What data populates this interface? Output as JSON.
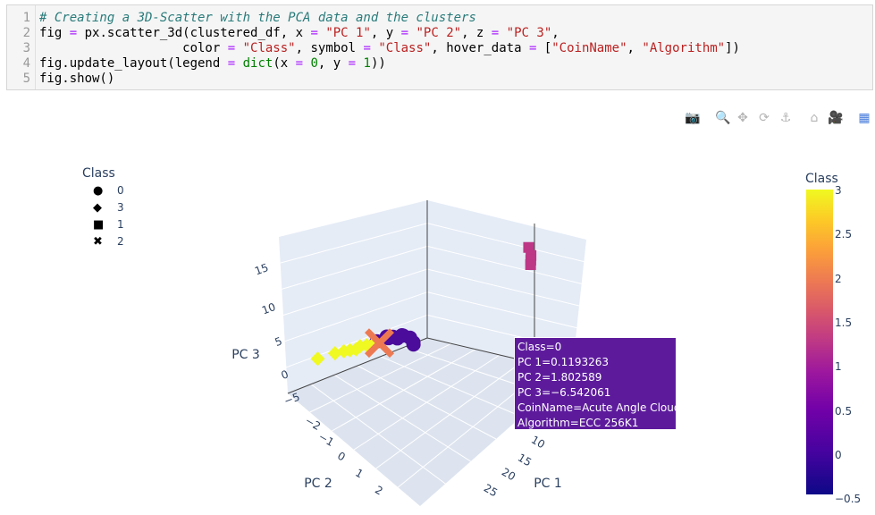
{
  "code": {
    "lines": [
      {
        "n": "1",
        "segments": [
          {
            "t": "# Creating a 3D-Scatter with the PCA data and the clusters",
            "c": "cm"
          }
        ]
      },
      {
        "n": "2",
        "segments": [
          {
            "t": "fig ",
            "c": ""
          },
          {
            "t": "=",
            "c": "op"
          },
          {
            "t": " px.scatter_3d(clustered_df, x ",
            "c": ""
          },
          {
            "t": "=",
            "c": "op"
          },
          {
            "t": " ",
            "c": ""
          },
          {
            "t": "\"PC 1\"",
            "c": "st"
          },
          {
            "t": ", y ",
            "c": ""
          },
          {
            "t": "=",
            "c": "op"
          },
          {
            "t": " ",
            "c": ""
          },
          {
            "t": "\"PC 2\"",
            "c": "st"
          },
          {
            "t": ", z ",
            "c": ""
          },
          {
            "t": "=",
            "c": "op"
          },
          {
            "t": " ",
            "c": ""
          },
          {
            "t": "\"PC 3\"",
            "c": "st"
          },
          {
            "t": ",",
            "c": ""
          }
        ]
      },
      {
        "n": "3",
        "segments": [
          {
            "t": "                   color ",
            "c": ""
          },
          {
            "t": "=",
            "c": "op"
          },
          {
            "t": " ",
            "c": ""
          },
          {
            "t": "\"Class\"",
            "c": "st"
          },
          {
            "t": ", symbol ",
            "c": ""
          },
          {
            "t": "=",
            "c": "op"
          },
          {
            "t": " ",
            "c": ""
          },
          {
            "t": "\"Class\"",
            "c": "st"
          },
          {
            "t": ", hover_data ",
            "c": ""
          },
          {
            "t": "=",
            "c": "op"
          },
          {
            "t": " [",
            "c": ""
          },
          {
            "t": "\"CoinName\"",
            "c": "st"
          },
          {
            "t": ", ",
            "c": ""
          },
          {
            "t": "\"Algorithm\"",
            "c": "st"
          },
          {
            "t": "])",
            "c": ""
          }
        ]
      },
      {
        "n": "4",
        "segments": [
          {
            "t": "fig.update_layout(legend ",
            "c": ""
          },
          {
            "t": "=",
            "c": "op"
          },
          {
            "t": " ",
            "c": ""
          },
          {
            "t": "dict",
            "c": "nm"
          },
          {
            "t": "(x ",
            "c": ""
          },
          {
            "t": "=",
            "c": "op"
          },
          {
            "t": " ",
            "c": ""
          },
          {
            "t": "0",
            "c": "nm"
          },
          {
            "t": ", y ",
            "c": ""
          },
          {
            "t": "=",
            "c": "op"
          },
          {
            "t": " ",
            "c": ""
          },
          {
            "t": "1",
            "c": "nm"
          },
          {
            "t": "))",
            "c": ""
          }
        ]
      },
      {
        "n": "5",
        "segments": [
          {
            "t": "fig.show()",
            "c": ""
          }
        ]
      }
    ]
  },
  "modebar": [
    {
      "name": "camera-icon",
      "glyph": "📷"
    },
    {
      "name": "zoom-icon",
      "glyph": "🔍"
    },
    {
      "name": "pan-icon",
      "glyph": "✥"
    },
    {
      "name": "orbit-icon",
      "glyph": "⟳"
    },
    {
      "name": "turntable-icon",
      "glyph": "⚓"
    },
    {
      "name": "home-icon",
      "glyph": "⌂"
    },
    {
      "name": "reset-camera-icon",
      "glyph": "🎥"
    },
    {
      "name": "plotly-logo-icon",
      "glyph": "▦"
    }
  ],
  "legend": {
    "title": "Class",
    "items": [
      {
        "symbol": "●",
        "label": "0"
      },
      {
        "symbol": "◆",
        "label": "3"
      },
      {
        "symbol": "■",
        "label": "1"
      },
      {
        "symbol": "✖",
        "label": "2"
      }
    ]
  },
  "colorbar": {
    "title": "Class",
    "ticks": [
      "3",
      "2.5",
      "2",
      "1.5",
      "1",
      "0.5",
      "0",
      "−0.5"
    ]
  },
  "hover": {
    "lines": [
      "Class=0",
      "PC 1=0.1193263",
      "PC 2=1.802589",
      "PC 3=−6.542061",
      "CoinName=Acute Angle Cloud",
      "Algorithm=ECC 256K1"
    ]
  },
  "chart_data": {
    "type": "scatter",
    "axes": {
      "x": {
        "title": "PC 1",
        "ticks": [
          "10",
          "15",
          "20",
          "25"
        ]
      },
      "y": {
        "title": "PC 2",
        "ticks": [
          "−2",
          "−1",
          "0",
          "1",
          "2"
        ]
      },
      "z": {
        "title": "PC 3",
        "ticks": [
          "−5",
          "0",
          "5",
          "10",
          "15"
        ]
      }
    },
    "series": [
      {
        "name": "0",
        "symbol": "circle",
        "color": "#4b0c9c",
        "points": [
          {
            "x": -0.5,
            "y": 1.5,
            "z": -4.5
          },
          {
            "x": -0.6,
            "y": 1.2,
            "z": -4.2
          },
          {
            "x": -0.4,
            "y": 1.0,
            "z": -4.0
          },
          {
            "x": -0.2,
            "y": 0.9,
            "z": -3.5
          },
          {
            "x": -0.8,
            "y": 1.6,
            "z": -4.8
          },
          {
            "x": -0.5,
            "y": 0.6,
            "z": -3.8
          },
          {
            "x": -0.3,
            "y": 1.3,
            "z": -4.6
          },
          {
            "x": 0.0,
            "y": 1.7,
            "z": -5.2
          },
          {
            "x": 0.1,
            "y": 1.8,
            "z": -6.2
          },
          {
            "x": 0.12,
            "y": 1.8,
            "z": -6.54
          }
        ]
      },
      {
        "name": "3",
        "symbol": "diamond",
        "color": "#f0f921",
        "points": [
          {
            "x": -0.5,
            "y": -0.9,
            "z": -3.0
          },
          {
            "x": -0.4,
            "y": -0.6,
            "z": -3.2
          },
          {
            "x": -0.3,
            "y": -0.4,
            "z": -3.4
          },
          {
            "x": -0.2,
            "y": -0.2,
            "z": -3.6
          },
          {
            "x": -0.5,
            "y": 0.0,
            "z": -3.5
          },
          {
            "x": -0.3,
            "y": 0.2,
            "z": -3.7
          },
          {
            "x": -0.1,
            "y": 0.4,
            "z": -3.8
          },
          {
            "x": -0.6,
            "y": -1.5,
            "z": -2.8
          }
        ]
      },
      {
        "name": "1",
        "symbol": "square",
        "color": "#bd3786",
        "points": [
          {
            "x": 24,
            "y": 1.5,
            "z": 16
          },
          {
            "x": 25,
            "y": 1.4,
            "z": 15
          },
          {
            "x": 25.5,
            "y": 1.3,
            "z": 14.5
          },
          {
            "x": 26,
            "y": 1.2,
            "z": 14
          }
        ]
      },
      {
        "name": "2",
        "symbol": "x",
        "color": "#ed7953",
        "points": [
          {
            "x": 0.0,
            "y": 0.6,
            "z": -4.0
          }
        ]
      }
    ]
  }
}
